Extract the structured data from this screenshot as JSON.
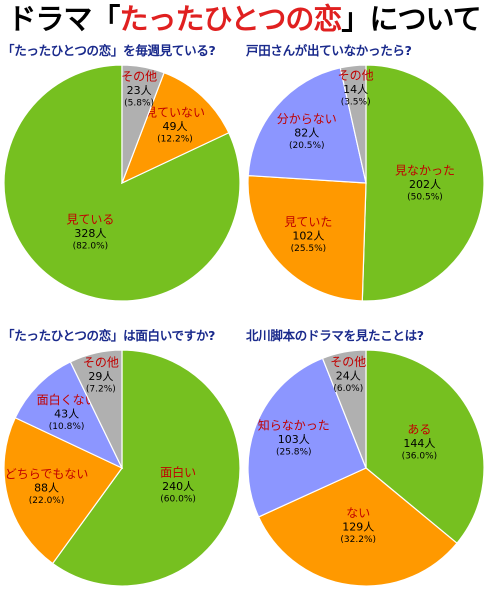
{
  "page_title": {
    "prefix": "ドラマ",
    "open_bracket": "「",
    "drama_name": "たったひとつの恋",
    "close_bracket": "」",
    "suffix": "について"
  },
  "chart_data": [
    {
      "type": "pie",
      "title": "「たったひとつの恋」を毎週見ている?",
      "start": "top",
      "direction": "counterclockwise",
      "slices": [
        {
          "label": "見ている",
          "count": "328人",
          "pct": "(82.0%)",
          "value": 82.0,
          "color": "#76c020"
        },
        {
          "label": "見ていない",
          "count": "49人",
          "pct": "(12.2%)",
          "value": 12.2,
          "color": "#ff9900"
        },
        {
          "label": "その他",
          "count": "23人",
          "pct": "(5.8%)",
          "value": 5.8,
          "color": "#b0b0b0"
        }
      ]
    },
    {
      "type": "pie",
      "title": "戸田さんが出ていなかったら?",
      "start": "top",
      "direction": "clockwise",
      "slices": [
        {
          "label": "見なかった",
          "count": "202人",
          "pct": "(50.5%)",
          "value": 50.5,
          "color": "#76c020"
        },
        {
          "label": "見ていた",
          "count": "102人",
          "pct": "(25.5%)",
          "value": 25.5,
          "color": "#ff9900"
        },
        {
          "label": "分からない",
          "count": "82人",
          "pct": "(20.5%)",
          "value": 20.5,
          "color": "#8c96ff"
        },
        {
          "label": "その他",
          "count": "14人",
          "pct": "(3.5%)",
          "value": 3.5,
          "color": "#b0b0b0"
        }
      ]
    },
    {
      "type": "pie",
      "title": "「たったひとつの恋」は面白いですか?",
      "start": "top",
      "direction": "clockwise",
      "slices": [
        {
          "label": "面白い",
          "count": "240人",
          "pct": "(60.0%)",
          "value": 60.0,
          "color": "#76c020"
        },
        {
          "label": "どちらでもない",
          "count": "88人",
          "pct": "(22.0%)",
          "value": 22.0,
          "color": "#ff9900"
        },
        {
          "label": "面白くない",
          "count": "43人",
          "pct": "(10.8%)",
          "value": 10.8,
          "color": "#8c96ff"
        },
        {
          "label": "その他",
          "count": "29人",
          "pct": "(7.2%)",
          "value": 7.2,
          "color": "#b0b0b0"
        }
      ]
    },
    {
      "type": "pie",
      "title": "北川脚本のドラマを見たことは?",
      "start": "top",
      "direction": "clockwise",
      "slices": [
        {
          "label": "ある",
          "count": "144人",
          "pct": "(36.0%)",
          "value": 36.0,
          "color": "#76c020"
        },
        {
          "label": "ない",
          "count": "129人",
          "pct": "(32.2%)",
          "value": 32.2,
          "color": "#ff9900"
        },
        {
          "label": "知らなかった",
          "count": "103人",
          "pct": "(25.8%)",
          "value": 25.8,
          "color": "#8c96ff"
        },
        {
          "label": "その他",
          "count": "24人",
          "pct": "(6.0%)",
          "value": 6.0,
          "color": "#b0b0b0"
        }
      ]
    }
  ]
}
